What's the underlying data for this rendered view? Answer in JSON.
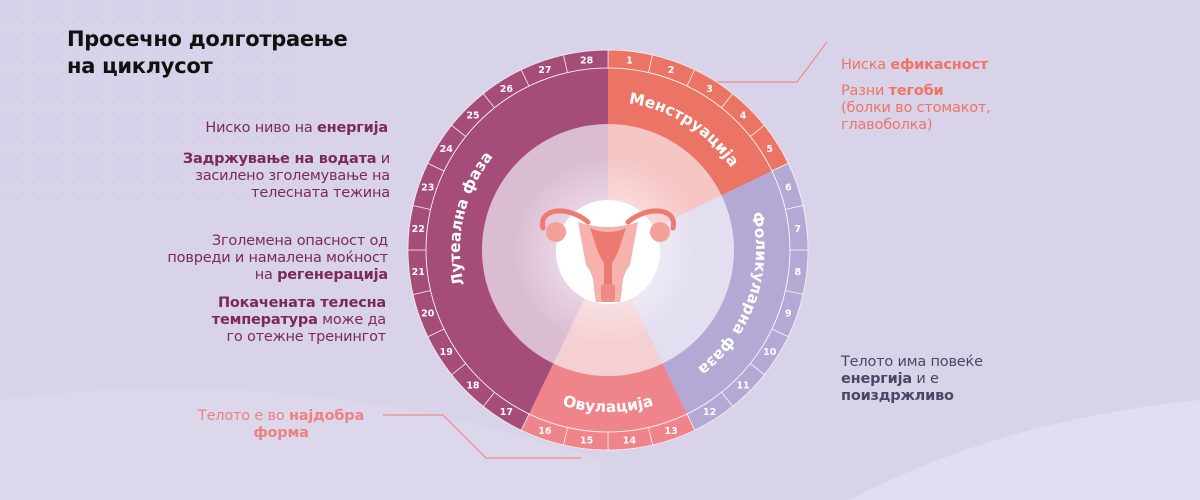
{
  "title": {
    "line1": "Просечно долготраење",
    "line2": "на циклусот"
  },
  "colors": {
    "background": "#d9d3e9",
    "menstruation": "#ec7464",
    "follicular": "#b3a9d4",
    "ovulation": "#ef848b",
    "luteal": "#a54c78",
    "inner_menstruation": "#f6c6c4",
    "inner_follicular": "#e3def0",
    "inner_ovulation": "#f4cfd3",
    "inner_luteal": "#dbbdd2"
  },
  "phases": [
    {
      "name": "Менструација",
      "days": [
        1,
        2,
        3,
        4,
        5
      ]
    },
    {
      "name": "Фоликуларна фаза",
      "days": [
        6,
        7,
        8,
        9,
        10,
        11,
        12
      ]
    },
    {
      "name": "Овулација",
      "days": [
        13,
        14,
        15,
        16
      ]
    },
    {
      "name": "Лутеална фаза",
      "days": [
        17,
        18,
        19,
        20,
        21,
        22,
        23,
        24,
        25,
        26,
        27,
        28
      ]
    }
  ],
  "days": [
    "1",
    "2",
    "3",
    "4",
    "5",
    "6",
    "7",
    "8",
    "9",
    "10",
    "11",
    "12",
    "13",
    "14",
    "15",
    "16",
    "17",
    "18",
    "19",
    "20",
    "21",
    "22",
    "23",
    "24",
    "25",
    "26",
    "27",
    "28"
  ],
  "center_icon": "uterus-icon",
  "luteal_notes": {
    "n1": {
      "t1": "Ниско ниво на ",
      "b1": "енергија"
    },
    "n2": {
      "b1": "Задржување на водата",
      "t1": " и",
      "l2": "засилено зголемување на",
      "l3": "телесната тежина"
    },
    "n3": {
      "l1": "Зголемена опасност од",
      "l2": "повреди и намалена моќност",
      "t3": "на ",
      "b3": "регенерација"
    },
    "n4": {
      "b1": "Покачената телесна",
      "b2": "температура",
      "t2": " може да",
      "l3": "го отежне тренингот"
    }
  },
  "menstruation_notes": {
    "n1": {
      "t1": "Ниска ",
      "b1": "ефикасност"
    },
    "n2": {
      "t1": "Разни ",
      "b1": "тегоби",
      "l2": "(болки во стомакот,",
      "l3": "главоболка)"
    }
  },
  "follicular_notes": {
    "l1": "Телото има повеќе",
    "b2": "енергија",
    "t2": " и е",
    "b3": "поиздржливо"
  },
  "ovulation_notes": {
    "t1": "Телото е во ",
    "b1": "најдобра",
    "b2": "форма"
  }
}
